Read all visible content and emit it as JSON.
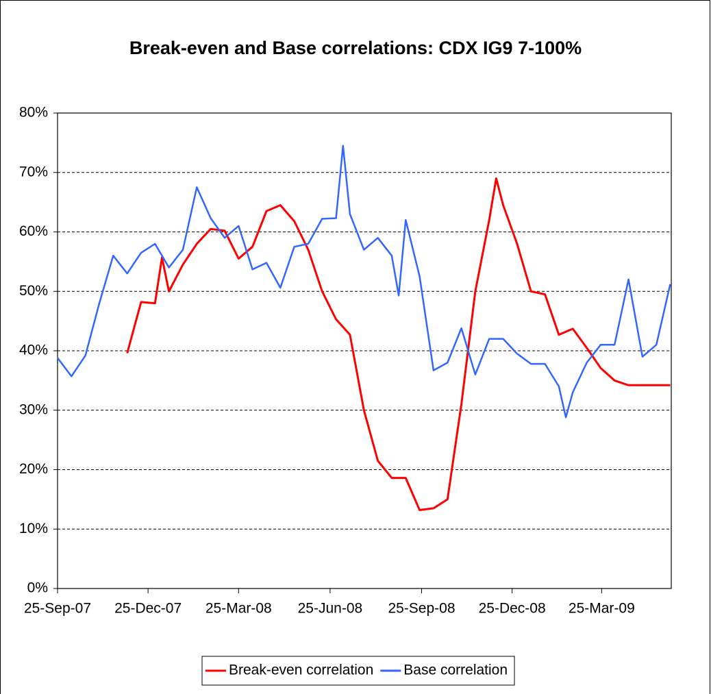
{
  "chart_data": {
    "type": "line",
    "title": "Break-even and Base correlations: CDX IG9 7-100%",
    "xlim": [
      "2007-09-25",
      "2009-06-03"
    ],
    "xticks": [
      {
        "value": "2007-09-25",
        "label": "25-Sep-07"
      },
      {
        "value": "2007-12-25",
        "label": "25-Dec-07"
      },
      {
        "value": "2008-03-25",
        "label": "25-Mar-08"
      },
      {
        "value": "2008-06-25",
        "label": "25-Jun-08"
      },
      {
        "value": "2008-09-25",
        "label": "25-Sep-08"
      },
      {
        "value": "2008-12-25",
        "label": "25-Dec-08"
      },
      {
        "value": "2009-03-25",
        "label": "25-Mar-09"
      }
    ],
    "ylim": [
      0,
      80
    ],
    "yticks": [
      {
        "value": 0,
        "label": "0%"
      },
      {
        "value": 10,
        "label": "10%"
      },
      {
        "value": 20,
        "label": "20%"
      },
      {
        "value": 30,
        "label": "30%"
      },
      {
        "value": 40,
        "label": "40%"
      },
      {
        "value": 50,
        "label": "50%"
      },
      {
        "value": 60,
        "label": "60%"
      },
      {
        "value": 70,
        "label": "70%"
      },
      {
        "value": 80,
        "label": "80%"
      }
    ],
    "grid": true,
    "legend": "bottom",
    "series": [
      {
        "name": "Break-even correlation",
        "color": "#ff0000",
        "x": [
          "2007-12-04",
          "2007-12-18",
          "2008-01-01",
          "2008-01-08",
          "2008-01-15",
          "2008-01-29",
          "2008-02-12",
          "2008-02-26",
          "2008-03-11",
          "2008-03-25",
          "2008-04-08",
          "2008-04-22",
          "2008-05-06",
          "2008-05-20",
          "2008-06-03",
          "2008-06-17",
          "2008-07-01",
          "2008-07-15",
          "2008-07-29",
          "2008-08-12",
          "2008-08-26",
          "2008-09-09",
          "2008-09-23",
          "2008-10-07",
          "2008-10-21",
          "2008-11-04",
          "2008-11-18",
          "2008-12-02",
          "2008-12-09",
          "2008-12-16",
          "2008-12-30",
          "2009-01-13",
          "2009-01-27",
          "2009-02-10",
          "2009-02-24",
          "2009-03-10",
          "2009-03-24",
          "2009-04-07",
          "2009-04-21",
          "2009-05-05",
          "2009-05-19",
          "2009-06-02"
        ],
        "values": [
          39.6,
          48.2,
          48,
          55.7,
          50,
          54.5,
          58,
          60.5,
          60.2,
          55.5,
          57.5,
          63.5,
          64.5,
          61.8,
          57,
          50,
          45.3,
          42.7,
          30,
          21.5,
          18.6,
          18.6,
          13.2,
          13.5,
          15,
          31,
          50,
          62,
          69,
          64.5,
          58,
          50,
          49.5,
          42.7,
          43.7,
          40.5,
          37.1,
          35,
          34.2,
          34.2,
          34.2,
          34.2
        ]
      },
      {
        "name": "Base correlation",
        "color": "#3366ff",
        "x": [
          "2007-09-25",
          "2007-10-09",
          "2007-10-23",
          "2007-11-06",
          "2007-11-20",
          "2007-12-04",
          "2007-12-18",
          "2008-01-01",
          "2008-01-15",
          "2008-01-29",
          "2008-02-12",
          "2008-02-26",
          "2008-03-11",
          "2008-03-25",
          "2008-04-08",
          "2008-04-22",
          "2008-05-06",
          "2008-05-20",
          "2008-06-03",
          "2008-06-17",
          "2008-07-01",
          "2008-07-08",
          "2008-07-15",
          "2008-07-29",
          "2008-08-12",
          "2008-08-26",
          "2008-09-02",
          "2008-09-09",
          "2008-09-23",
          "2008-10-07",
          "2008-10-21",
          "2008-11-04",
          "2008-11-18",
          "2008-12-02",
          "2008-12-16",
          "2008-12-30",
          "2009-01-13",
          "2009-01-27",
          "2009-02-10",
          "2009-02-17",
          "2009-02-24",
          "2009-03-10",
          "2009-03-24",
          "2009-04-07",
          "2009-04-21",
          "2009-05-05",
          "2009-05-19",
          "2009-06-02"
        ],
        "values": [
          38.8,
          35.7,
          39.2,
          48,
          56,
          53,
          56.5,
          58,
          54,
          57,
          67.5,
          62.3,
          59,
          61,
          53.7,
          54.8,
          50.6,
          57.5,
          58,
          62.2,
          62.3,
          74.5,
          63,
          57,
          59,
          56,
          49.3,
          62,
          52.5,
          36.7,
          38,
          43.8,
          36,
          42,
          42,
          39.5,
          37.8,
          37.8,
          34,
          28.8,
          33,
          38,
          41,
          41,
          52,
          39,
          41,
          51.2
        ]
      }
    ]
  }
}
